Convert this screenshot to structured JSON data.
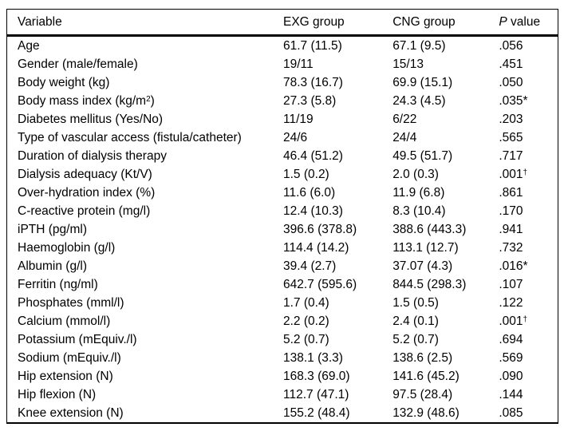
{
  "page": {
    "background": "#ffffff"
  },
  "table": {
    "colors": {
      "text": "#000000",
      "border": "#000000",
      "background": "#ffffff"
    },
    "header": {
      "variable": "Variable",
      "exg": "EXG group",
      "cng": "CNG group",
      "p_italic": "P",
      "p_rest": " value"
    },
    "rows": [
      {
        "variable": "Age",
        "exg": "61.7 (11.5)",
        "cng": "67.1 (9.5)",
        "p": ".056"
      },
      {
        "variable": "Gender (male/female)",
        "exg": "19/11",
        "cng": "15/13",
        "p": ".451"
      },
      {
        "variable": "Body weight (kg)",
        "exg": "78.3 (16.7)",
        "cng": "69.9 (15.1)",
        "p": ".050"
      },
      {
        "variable": "Body mass index (kg/m",
        "variable_sup": "2",
        "variable_tail": ")",
        "exg": "27.3 (5.8)",
        "cng": "24.3 (4.5)",
        "p": ".035*"
      },
      {
        "variable": "Diabetes mellitus (Yes/No)",
        "exg": "11/19",
        "cng": "6/22",
        "p": ".203"
      },
      {
        "variable": "Type of vascular access (fistula/catheter)",
        "exg": "24/6",
        "cng": "24/4",
        "p": ".565"
      },
      {
        "variable": "Duration of dialysis therapy",
        "exg": "46.4 (51.2)",
        "cng": "49.5 (51.7)",
        "p": ".717"
      },
      {
        "variable": "Dialysis adequacy (Kt/V)",
        "exg": "1.5 (0.2)",
        "cng": "2.0 (0.3)",
        "p": ".001",
        "p_sup": "†"
      },
      {
        "variable": "Over-hydration index (%)",
        "exg": "11.6 (6.0)",
        "cng": "11.9 (6.8)",
        "p": ".861"
      },
      {
        "variable": "C-reactive protein (mg/l)",
        "exg": "12.4 (10.3)",
        "cng": "8.3 (10.4)",
        "p": ".170"
      },
      {
        "variable": "iPTH (pg/ml)",
        "exg": "396.6 (378.8)",
        "cng": "388.6 (443.3)",
        "p": ".941"
      },
      {
        "variable": "Haemoglobin (g/l)",
        "exg": "114.4 (14.2)",
        "cng": "113.1 (12.7)",
        "p": ".732"
      },
      {
        "variable": "Albumin (g/l)",
        "exg": "39.4 (2.7)",
        "cng": "37.07 (4.3)",
        "p": ".016*"
      },
      {
        "variable": "Ferritin (ng/ml)",
        "exg": "642.7 (595.6)",
        "cng": "844.5 (298.3)",
        "p": ".107"
      },
      {
        "variable": "Phosphates (mml/l)",
        "exg": "1.7 (0.4)",
        "cng": "1.5 (0.5)",
        "p": ".122"
      },
      {
        "variable": "Calcium (mmol/l)",
        "exg": "2.2 (0.2)",
        "cng": "2.4 (0.1)",
        "p": ".001",
        "p_sup": "†"
      },
      {
        "variable": "Potassium (mEquiv./l)",
        "exg": "5.2 (0.7)",
        "cng": "5.2 (0.7)",
        "p": ".694"
      },
      {
        "variable": "Sodium (mEquiv./l)",
        "exg": "138.1 (3.3)",
        "cng": "138.6 (2.5)",
        "p": ".569"
      },
      {
        "variable": "Hip extension (N)",
        "exg": "168.3 (69.0)",
        "cng": "141.6 (45.2)",
        "p": ".090"
      },
      {
        "variable": "Hip flexion (N)",
        "exg": "112.7 (47.1)",
        "cng": "97.5 (28.4)",
        "p": ".144"
      },
      {
        "variable": "Knee extension (N)",
        "exg": "155.2 (48.4)",
        "cng": "132.9 (48.6)",
        "p": ".085"
      }
    ]
  }
}
